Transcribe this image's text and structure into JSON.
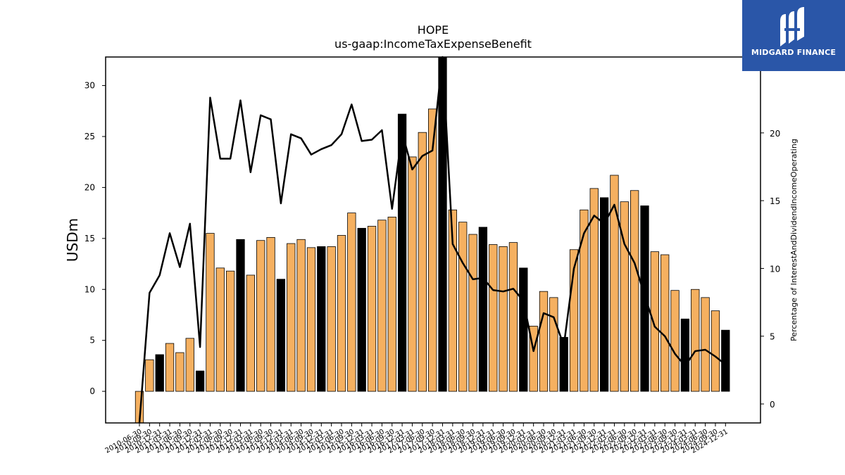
{
  "header": {
    "title": "HOPE",
    "subtitle": "us-gaap:IncomeTaxExpenseBenefit"
  },
  "logo": {
    "text": "MIDGARD FINANCE",
    "background": "#2a56a8"
  },
  "colors": {
    "bar_default": "#f5b060",
    "bar_highlight": "#000000",
    "line": "#000000"
  },
  "chart_data": {
    "type": "bar",
    "ylabel": "USDm",
    "y2label": "Percentage of InterestAndDividendIncomeOperating",
    "ylim": [
      -3.1,
      32.8
    ],
    "y2lim": [
      -1.4,
      25.6
    ],
    "yticks": [
      0,
      5,
      10,
      15,
      20,
      25,
      30
    ],
    "y2ticks": [
      0,
      5,
      10,
      15,
      20,
      25
    ],
    "categories": [
      "2010-06-30",
      "2010-09-30",
      "2010-12-31",
      "2011-03-31",
      "2011-06-30",
      "2011-09-30",
      "2011-12-31",
      "2012-03-31",
      "2012-06-30",
      "2012-09-30",
      "2012-12-31",
      "2013-03-31",
      "2013-06-30",
      "2013-09-30",
      "2013-12-31",
      "2014-03-31",
      "2014-06-30",
      "2014-09-30",
      "2014-12-31",
      "2015-03-31",
      "2015-06-30",
      "2015-09-30",
      "2015-12-31",
      "2016-03-31",
      "2016-06-30",
      "2016-09-30",
      "2016-12-31",
      "2017-03-31",
      "2017-06-30",
      "2017-09-30",
      "2017-12-31",
      "2018-03-31",
      "2018-06-30",
      "2018-09-30",
      "2018-12-31",
      "2019-03-31",
      "2019-06-30",
      "2019-09-30",
      "2019-12-31",
      "2020-03-31",
      "2020-06-30",
      "2020-09-30",
      "2020-12-31",
      "2021-03-31",
      "2021-06-30",
      "2021-09-30",
      "2021-12-31",
      "2022-03-31",
      "2022-06-30",
      "2022-09-30",
      "2022-12-31",
      "2023-03-31",
      "2023-06-30",
      "2023-09-30",
      "2023-12-31",
      "2024-03-31",
      "2024-06-30",
      "2024-09-30",
      "2024-12-31"
    ],
    "series": [
      {
        "type": "bar",
        "values": [
          -4.5,
          3.1,
          3.6,
          4.7,
          3.8,
          5.2,
          2.0,
          15.5,
          12.1,
          11.8,
          14.9,
          11.4,
          14.8,
          15.1,
          11.0,
          14.5,
          14.9,
          14.1,
          14.2,
          14.2,
          15.3,
          17.5,
          16.0,
          16.2,
          16.8,
          17.1,
          27.2,
          23.0,
          25.4,
          27.7,
          33.0,
          17.8,
          16.6,
          15.4,
          16.1,
          14.4,
          14.2,
          14.6,
          12.1,
          6.4,
          9.8,
          9.2,
          5.3,
          13.9,
          17.8,
          19.9,
          19.0,
          21.2,
          18.6,
          19.7,
          18.2,
          13.7,
          13.4,
          9.9,
          7.1,
          10.0,
          9.2,
          7.9,
          6.0
        ],
        "highlight": [
          false,
          false,
          true,
          false,
          false,
          false,
          true,
          false,
          false,
          false,
          true,
          false,
          false,
          false,
          true,
          false,
          false,
          false,
          true,
          false,
          false,
          false,
          true,
          false,
          false,
          false,
          true,
          false,
          false,
          false,
          true,
          false,
          false,
          false,
          true,
          false,
          false,
          false,
          true,
          false,
          false,
          false,
          true,
          false,
          false,
          false,
          true,
          false,
          false,
          false,
          true,
          false,
          false,
          false,
          true,
          false,
          false,
          false,
          true
        ]
      },
      {
        "type": "line",
        "axis": "right",
        "values": [
          -5.0,
          8.2,
          9.5,
          12.6,
          10.1,
          13.3,
          4.2,
          22.6,
          18.1,
          18.1,
          22.4,
          17.1,
          21.3,
          21.0,
          14.8,
          19.9,
          19.6,
          18.4,
          18.8,
          19.1,
          19.9,
          22.1,
          19.4,
          19.5,
          20.2,
          14.4,
          20.0,
          17.3,
          18.3,
          18.7,
          26.5,
          11.8,
          10.4,
          9.2,
          9.3,
          8.4,
          8.3,
          8.5,
          7.6,
          3.9,
          6.7,
          6.4,
          4.3,
          10.0,
          12.6,
          13.9,
          13.3,
          14.7,
          11.8,
          10.4,
          8.0,
          5.7,
          5.0,
          3.7,
          2.8,
          3.9,
          4.0,
          3.5,
          2.9
        ]
      }
    ]
  }
}
